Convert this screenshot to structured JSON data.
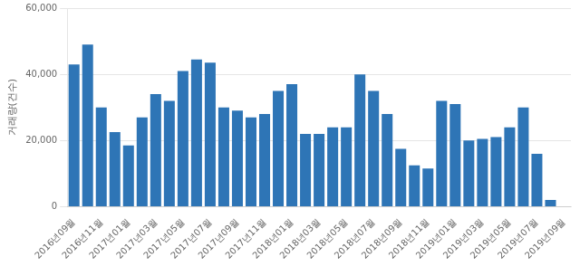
{
  "chart_data": {
    "type": "bar",
    "y_label": "거래량(건수)",
    "categories": [
      "2016년09월",
      null,
      "2016년11월",
      null,
      "2017년01월",
      null,
      "2017년03월",
      null,
      "2017년05월",
      null,
      "2017년07월",
      null,
      "2017년09월",
      null,
      "2017년11월",
      null,
      "2018년01월",
      null,
      "2018년03월",
      null,
      "2018년05월",
      null,
      "2018년07월",
      null,
      "2018년09월",
      null,
      "2018년11월",
      null,
      "2019년01월",
      null,
      "2019년03월",
      null,
      "2019년05월",
      null,
      "2019년07월",
      null,
      "2019년09월"
    ],
    "values": [
      43000,
      49000,
      30000,
      22500,
      18500,
      27000,
      34000,
      32000,
      41000,
      44500,
      43500,
      30000,
      29000,
      27000,
      28000,
      35000,
      37000,
      22000,
      22000,
      24000,
      24000,
      40000,
      35000,
      28000,
      17500,
      12500,
      11500,
      32000,
      31000,
      20000,
      20500,
      21000,
      24000,
      30000,
      16000,
      2000,
      0
    ],
    "color": "#2e75b6",
    "ylim": [
      0,
      60000
    ],
    "yticks": [
      0,
      {
        "value": 20000,
        "label": "20,000"
      },
      {
        "value": 40000,
        "label": "40,000"
      },
      {
        "value": 60000,
        "label": "60,000"
      }
    ],
    "grid": true
  }
}
